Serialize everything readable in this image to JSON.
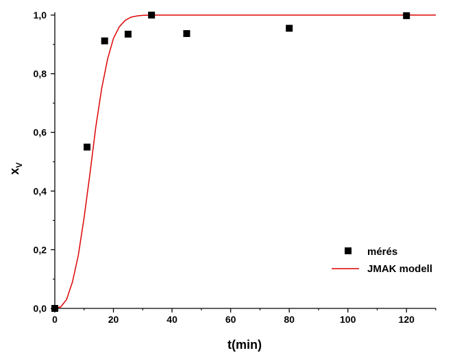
{
  "chart_data": {
    "type": "scatter",
    "xlabel": "t(min)",
    "ylabel_main": "x",
    "ylabel_sub": "V",
    "xlim": [
      0,
      130
    ],
    "ylim": [
      0,
      1.0
    ],
    "x_ticks": [
      "0",
      "20",
      "40",
      "60",
      "80",
      "100",
      "120"
    ],
    "y_ticks": [
      "0,0",
      "0,2",
      "0,4",
      "0,6",
      "0,8",
      "1,0"
    ],
    "grid": false,
    "legend_position": "right",
    "series": [
      {
        "name": "mérés",
        "kind": "scatter",
        "marker": "square",
        "color": "#000000",
        "points": [
          {
            "x": 0,
            "y": 0.0
          },
          {
            "x": 11,
            "y": 0.55
          },
          {
            "x": 17,
            "y": 0.912
          },
          {
            "x": 25,
            "y": 0.935
          },
          {
            "x": 33,
            "y": 1.0
          },
          {
            "x": 45,
            "y": 0.937
          },
          {
            "x": 80,
            "y": 0.955
          },
          {
            "x": 120,
            "y": 0.998
          }
        ]
      },
      {
        "name": "JMAK modell",
        "kind": "line",
        "color": "#dd0000",
        "points": [
          {
            "x": 0,
            "y": 0.0
          },
          {
            "x": 2,
            "y": 0.005
          },
          {
            "x": 4,
            "y": 0.03
          },
          {
            "x": 6,
            "y": 0.09
          },
          {
            "x": 8,
            "y": 0.18
          },
          {
            "x": 10,
            "y": 0.31
          },
          {
            "x": 12,
            "y": 0.46
          },
          {
            "x": 14,
            "y": 0.62
          },
          {
            "x": 16,
            "y": 0.75
          },
          {
            "x": 18,
            "y": 0.85
          },
          {
            "x": 20,
            "y": 0.92
          },
          {
            "x": 22,
            "y": 0.96
          },
          {
            "x": 24,
            "y": 0.982
          },
          {
            "x": 26,
            "y": 0.993
          },
          {
            "x": 28,
            "y": 0.997
          },
          {
            "x": 30,
            "y": 0.999
          },
          {
            "x": 33,
            "y": 1.0
          },
          {
            "x": 130,
            "y": 1.0
          }
        ]
      }
    ]
  }
}
